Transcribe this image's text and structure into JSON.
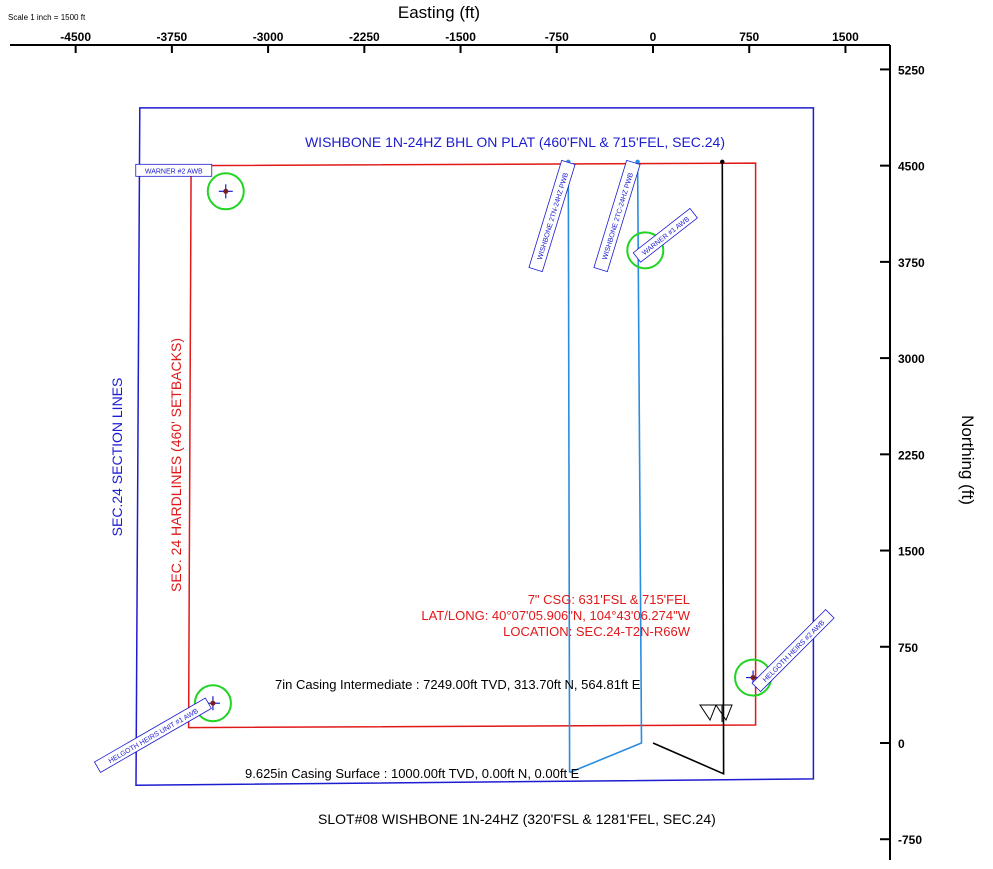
{
  "scale_note": "Scale 1 inch = 1500 ft",
  "chart_data": {
    "type": "scatter",
    "xlabel": "Easting (ft)",
    "ylabel": "Northing (ft)",
    "x_ticks": [
      -4500,
      -3750,
      -3000,
      -2250,
      -1500,
      -750,
      0,
      750,
      1500
    ],
    "y_ticks": [
      5250,
      4500,
      3750,
      3000,
      2250,
      1500,
      750,
      0,
      -750
    ],
    "xlim": [
      -5000,
      1800
    ],
    "ylim": [
      -1100,
      5500
    ],
    "grid": false,
    "section_lines": {
      "name": "SEC.24 SECTION LINES",
      "color": "#1c1cd0",
      "points": [
        [
          -4000,
          4950
        ],
        [
          1250,
          4950
        ],
        [
          1250,
          -280
        ],
        [
          -4030,
          -330
        ]
      ]
    },
    "hardlines": {
      "name": "SEC. 24 HARDLINES (460' SETBACKS)",
      "color": "#e01818",
      "points": [
        [
          -3600,
          4500
        ],
        [
          800,
          4520
        ],
        [
          800,
          140
        ],
        [
          -3620,
          120
        ]
      ]
    },
    "wellpaths": [
      {
        "name": "WISHBONE 2TN-24HZ PWB",
        "color": "#2a8ce0",
        "points": [
          [
            -650,
            -230
          ],
          [
            -660,
            4530
          ]
        ]
      },
      {
        "name": "WISHBONE 2TC-24HZ PWB",
        "color": "#2a8ce0",
        "points": [
          [
            -650,
            -230
          ],
          [
            -90,
            0
          ],
          [
            -120,
            4530
          ]
        ]
      },
      {
        "name": "WISHBONE 1N-24HZ",
        "color": "#000000",
        "points": [
          [
            0,
            0
          ],
          [
            550,
            -240
          ],
          [
            540,
            4530
          ]
        ]
      }
    ],
    "offset_wells": [
      {
        "name": "WARNER #2 AWB",
        "color": "#1c1cd0",
        "x": -3330,
        "y": 4300
      },
      {
        "name": "WARNER #1 AWB",
        "color": "#1c1cd0",
        "x": -60,
        "y": 3840
      },
      {
        "name": "HELGOTH HEIRS UNIT #1 AWB",
        "color": "#1c1cd0",
        "x": -3430,
        "y": 310
      },
      {
        "name": "HELGOTH HEIRS #2 AWB",
        "color": "#1c1cd0",
        "x": 780,
        "y": 510
      }
    ],
    "annotations": {
      "bhl": "WISHBONE 1N-24HZ BHL ON PLAT (460'FNL & 715'FEL, SEC.24)",
      "csg_line1": "7\" CSG: 631'FSL & 715'FEL",
      "csg_line2": "LAT/LONG: 40°07'05.906\"N, 104°43'06.274\"W",
      "csg_line3": "LOCATION: SEC.24-T2N-R66W",
      "casing_intermediate": "7in Casing Intermediate : 7249.00ft TVD, 313.70ft N, 564.81ft E",
      "casing_surface": "9.625in Casing Surface : 1000.00ft TVD, 0.00ft N, 0.00ft E",
      "slot": "SLOT#08 WISHBONE 1N-24HZ (320'FSL & 1281'FEL, SEC.24)"
    }
  }
}
